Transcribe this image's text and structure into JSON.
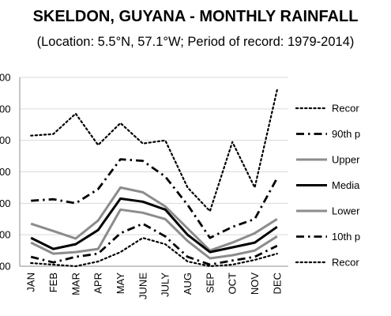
{
  "header": {
    "title": "SKELDON, GUYANA - MONTHLY RAINFALL",
    "subtitle": "(Location: 5.5°N, 57.1°W; Period of record: 1979-2014)"
  },
  "chart_data": {
    "type": "line",
    "title": "SKELDON, GUYANA - MONTHLY RAINFALL",
    "subtitle": "(Location: 5.5°N, 57.1°W; Period of record: 1979-2014)",
    "categories": [
      "JAN",
      "FEB",
      "MAR",
      "APR",
      "MAY",
      "JUNE",
      "JULY",
      "AUG",
      "SEP",
      "OCT",
      "NOV",
      "DEC"
    ],
    "y_tick_labels": [
      "00",
      "00",
      "00",
      "00",
      "00",
      "00",
      "00"
    ],
    "grid": "horizontal",
    "legend_position": "right",
    "series": [
      {
        "name": "Recor",
        "style": "dotted",
        "color": "#000000",
        "width": 2.2,
        "values": [
          415,
          420,
          485,
          385,
          455,
          390,
          400,
          250,
          175,
          395,
          250,
          560
        ]
      },
      {
        "name": "90th p",
        "style": "dashdot",
        "color": "#000000",
        "width": 2.8,
        "values": [
          208,
          213,
          200,
          245,
          340,
          335,
          285,
          195,
          90,
          125,
          150,
          280
        ]
      },
      {
        "name": "Upper",
        "style": "solid",
        "color": "#8c8c8c",
        "width": 3,
        "values": [
          135,
          112,
          88,
          145,
          250,
          235,
          190,
          120,
          50,
          75,
          105,
          150
        ]
      },
      {
        "name": "Media",
        "style": "solid",
        "color": "#000000",
        "width": 3,
        "values": [
          90,
          55,
          70,
          115,
          215,
          205,
          180,
          100,
          45,
          60,
          75,
          125
        ]
      },
      {
        "name": "Lower",
        "style": "solid",
        "color": "#8c8c8c",
        "width": 3,
        "values": [
          75,
          40,
          45,
          55,
          180,
          170,
          150,
          80,
          25,
          35,
          50,
          95
        ]
      },
      {
        "name": "10th p",
        "style": "dashdot",
        "color": "#000000",
        "width": 2.8,
        "values": [
          30,
          12,
          30,
          40,
          105,
          135,
          95,
          30,
          5,
          18,
          30,
          65
        ]
      },
      {
        "name": "Recor",
        "style": "dotted",
        "color": "#000000",
        "width": 2.2,
        "values": [
          10,
          5,
          0,
          15,
          45,
          90,
          70,
          15,
          0,
          5,
          20,
          40
        ]
      }
    ]
  }
}
